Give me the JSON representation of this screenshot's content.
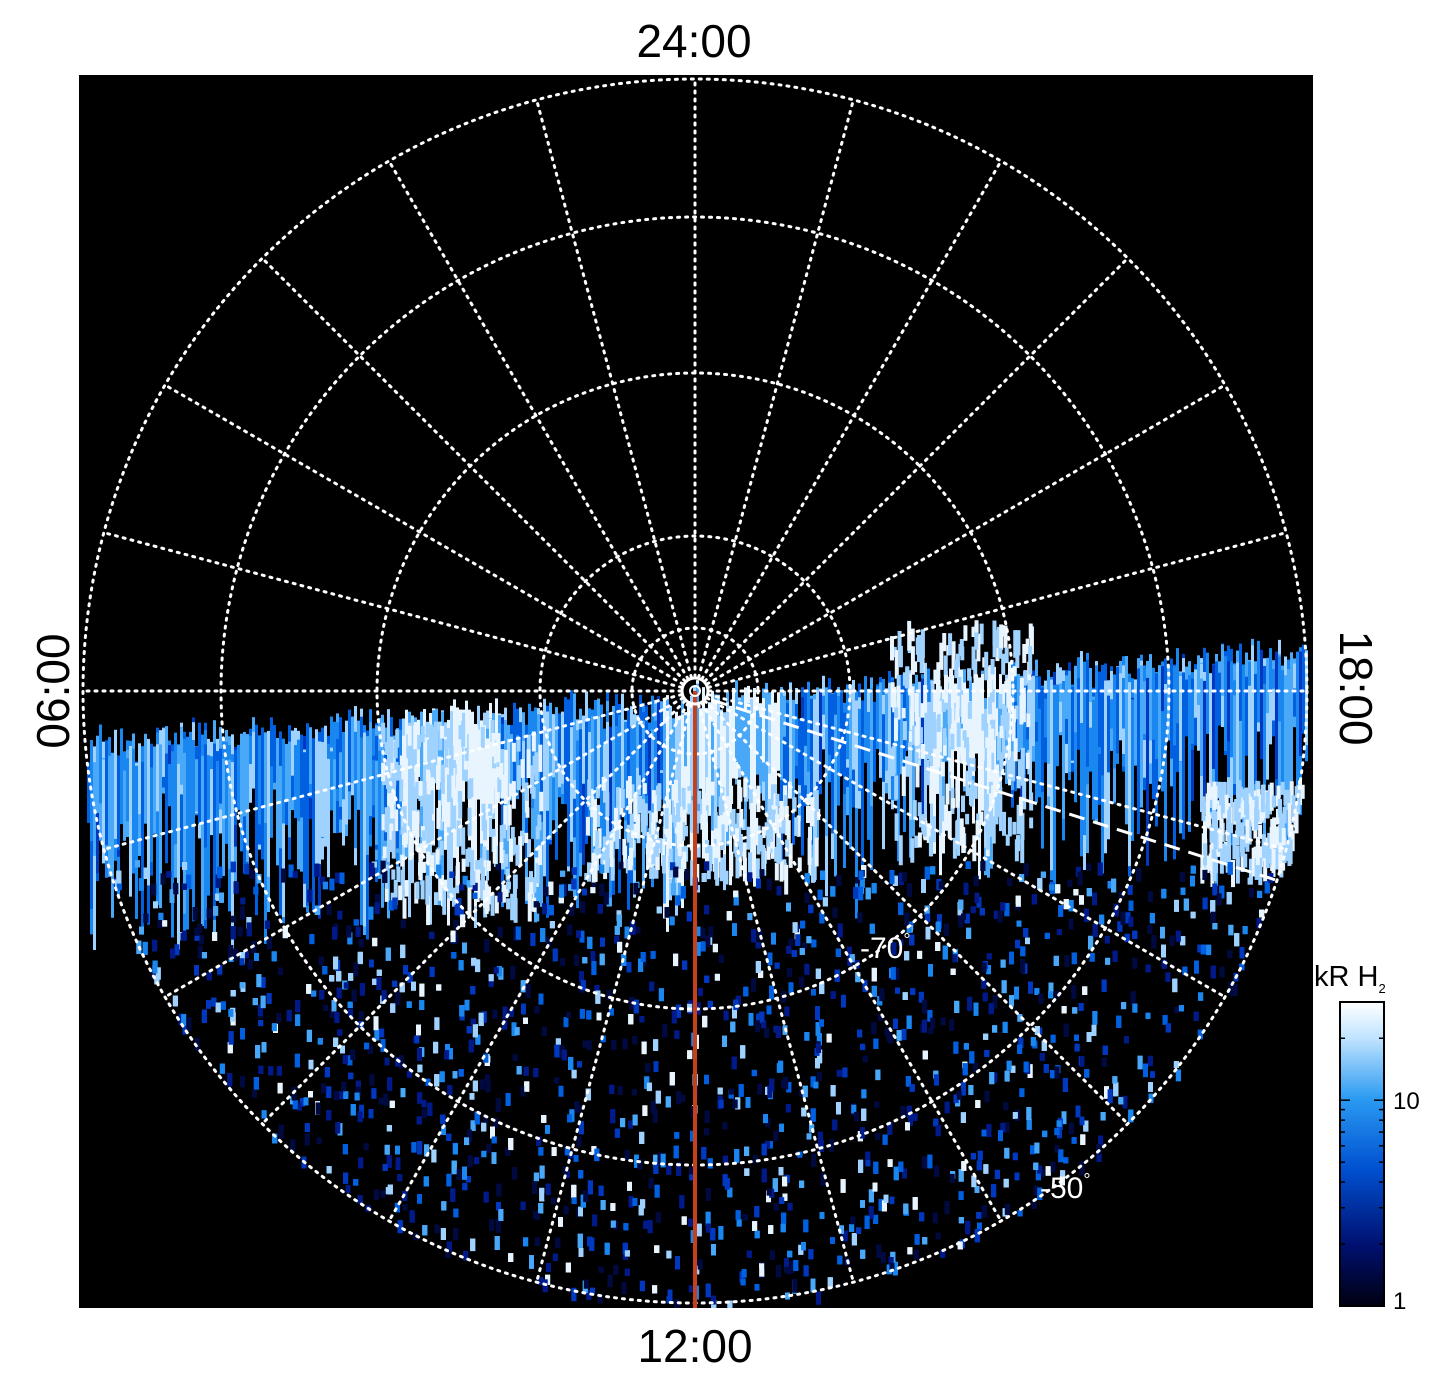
{
  "labels": {
    "top": "24:00",
    "bottom": "12:00",
    "left": "06:00",
    "right": "18:00"
  },
  "lat_labels": [
    {
      "text": "-70",
      "deg": "°"
    },
    {
      "text": "-50",
      "deg": "°"
    }
  ],
  "colorbar": {
    "title_main": "kR H",
    "title_sub": "2",
    "ticks": [
      {
        "label": "10",
        "value": 10
      },
      {
        "label": "1",
        "value": 1
      }
    ],
    "range": [
      1,
      30
    ],
    "scale": "log",
    "colors": [
      "#000010",
      "#001070",
      "#0050d0",
      "#2a9af2",
      "#bfe3ff",
      "#ffffff"
    ]
  },
  "colors": {
    "background": "#000000",
    "grid": "#ffffff",
    "meridian": "#c8401a"
  }
}
